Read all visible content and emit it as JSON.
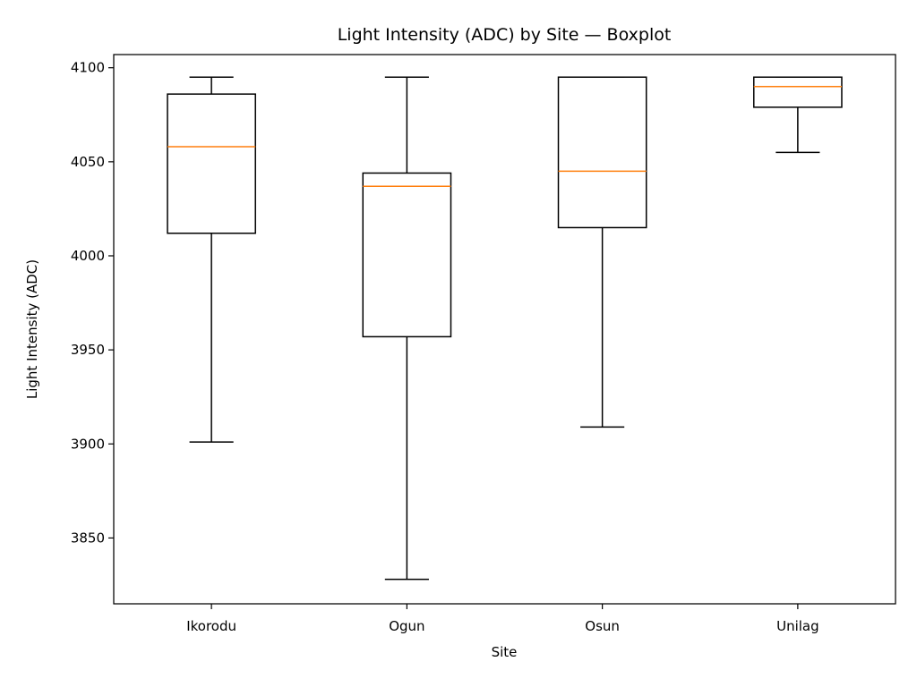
{
  "chart_data": {
    "type": "box",
    "title": "Light Intensity (ADC) by Site — Boxplot",
    "xlabel": "Site",
    "ylabel": "Light Intensity (ADC)",
    "ylim": [
      3815,
      4107
    ],
    "yticks": [
      3850,
      3900,
      3950,
      4000,
      4050,
      4100
    ],
    "categories": [
      "Ikorodu",
      "Ogun",
      "Osun",
      "Unilag"
    ],
    "boxes": [
      {
        "category": "Ikorodu",
        "whisker_low": 3901,
        "q1": 4012,
        "median": 4058,
        "q3": 4086,
        "whisker_high": 4095
      },
      {
        "category": "Ogun",
        "whisker_low": 3828,
        "q1": 3957,
        "median": 4037,
        "q3": 4044,
        "whisker_high": 4095
      },
      {
        "category": "Osun",
        "whisker_low": 3909,
        "q1": 4015,
        "median": 4045,
        "q3": 4095,
        "whisker_high": 4095
      },
      {
        "category": "Unilag",
        "whisker_low": 4055,
        "q1": 4079,
        "median": 4090,
        "q3": 4095,
        "whisker_high": 4095
      }
    ],
    "grid": false,
    "colors": {
      "box": "#000000",
      "median": "#ff7f0e",
      "background": "#ffffff"
    }
  }
}
